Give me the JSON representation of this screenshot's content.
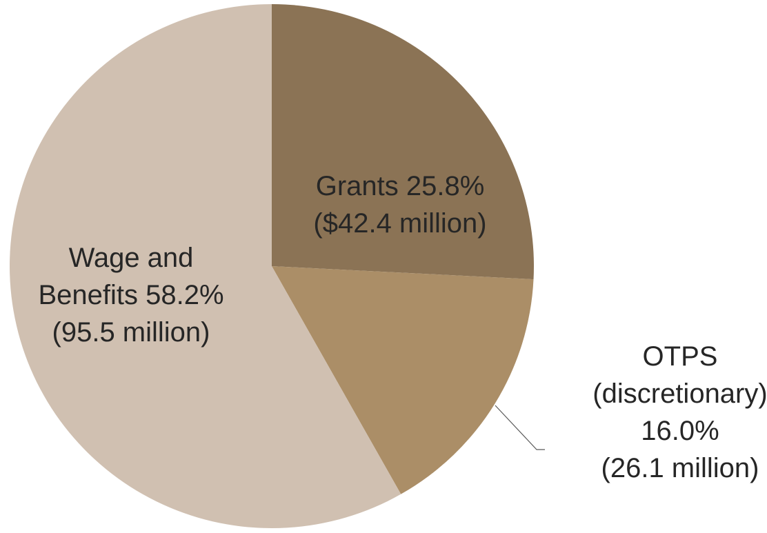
{
  "chart_data": {
    "type": "pie",
    "title": "",
    "start_angle_deg": 0,
    "direction": "clockwise",
    "slices": [
      {
        "name": "Grants",
        "percent": 25.8,
        "amount": "$42.4 million",
        "value_millions": 42.4,
        "color": "#8b7355",
        "label_lines": [
          "Grants 25.8%",
          "($42.4 million)"
        ]
      },
      {
        "name": "OTPS (discretionary)",
        "percent": 16.0,
        "amount": "26.1 million",
        "value_millions": 26.1,
        "color": "#ab8e67",
        "label_lines": [
          "OTPS",
          "(discretionary)",
          "16.0%",
          "(26.1 million)"
        ]
      },
      {
        "name": "Wage and Benefits",
        "percent": 58.2,
        "amount": "95.5 million",
        "value_millions": 95.5,
        "color": "#d0c0b1",
        "label_lines": [
          "Wage and",
          "Benefits 58.2%",
          "(95.5 million)"
        ]
      }
    ]
  }
}
